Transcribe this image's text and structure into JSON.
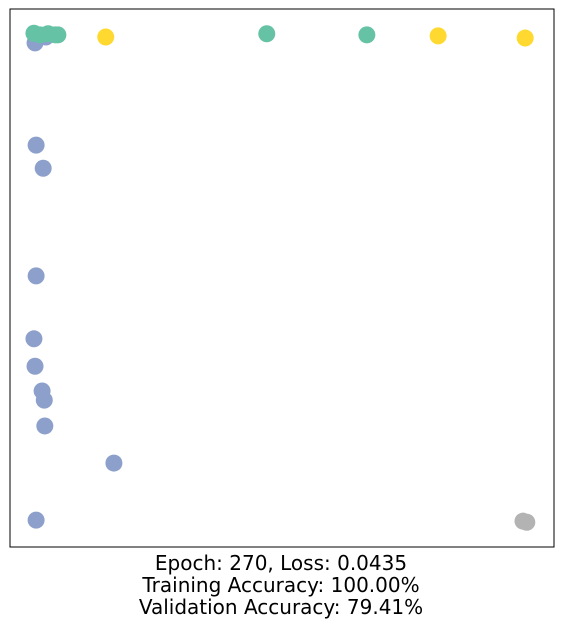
{
  "chart_data": {
    "type": "scatter",
    "caption": [
      "Epoch: 270, Loss: 0.0435",
      "Training Accuracy: 100.00%",
      "Validation Accuracy: 79.41%"
    ],
    "xlim": [
      0,
      1
    ],
    "ylim": [
      0,
      1
    ],
    "series": [
      {
        "color": "#8da0cb",
        "x": [
          0.046,
          0.048,
          0.061,
          0.048,
          0.044,
          0.046,
          0.059,
          0.063,
          0.064,
          0.191,
          0.048,
          0.066
        ],
        "y": [
          0.937,
          0.747,
          0.704,
          0.504,
          0.387,
          0.336,
          0.29,
          0.273,
          0.225,
          0.156,
          0.05,
          0.948
        ]
      },
      {
        "color": "#66c2a5",
        "x": [
          0.044,
          0.055,
          0.07,
          0.083,
          0.088,
          0.472,
          0.656
        ],
        "y": [
          0.955,
          0.952,
          0.954,
          0.952,
          0.952,
          0.954,
          0.952
        ]
      },
      {
        "color": "#ffd92f",
        "x": [
          0.176,
          0.787,
          0.947
        ],
        "y": [
          0.948,
          0.95,
          0.946
        ]
      },
      {
        "color": "#b3b3b3",
        "x": [
          0.943,
          0.95
        ],
        "y": [
          0.048,
          0.046
        ]
      }
    ]
  }
}
